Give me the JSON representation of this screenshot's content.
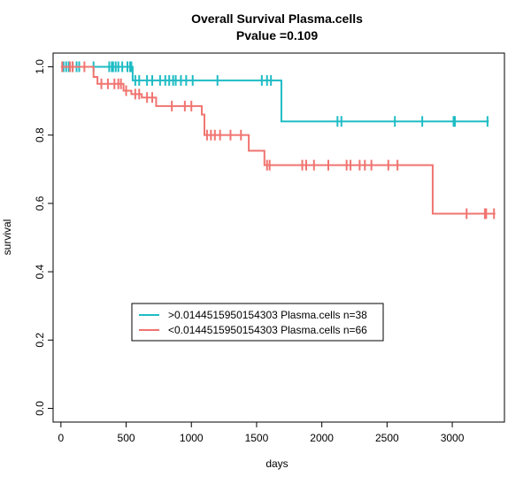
{
  "chart_data": {
    "type": "line",
    "title": "Overall Survival Plasma.cells",
    "subtitle": "Pvalue =0.109",
    "xlabel": "days",
    "ylabel": "survival",
    "xlim": [
      -60,
      3400
    ],
    "ylim": [
      -0.04,
      1.04
    ],
    "x_ticks": [
      0,
      500,
      1000,
      1500,
      2000,
      2500,
      3000
    ],
    "y_ticks": [
      0.0,
      0.2,
      0.4,
      0.6,
      0.8,
      1.0
    ],
    "x_tick_labels": [
      "0",
      "500",
      "1000",
      "1500",
      "2000",
      "2500",
      "3000"
    ],
    "y_tick_labels": [
      "0.0",
      "0.2",
      "0.4",
      "0.6",
      "0.8",
      "1.0"
    ],
    "grid": false,
    "legend_position": "bottom-left",
    "series": [
      {
        "name": ">0.0144515950154303 Plasma.cells n=38",
        "color": "#1fbcc4",
        "steps": [
          [
            0,
            1.0
          ],
          [
            550,
            0.96
          ],
          [
            1690,
            0.84
          ],
          [
            3280,
            0.84
          ]
        ],
        "censored": [
          [
            20,
            1.0
          ],
          [
            40,
            1.0
          ],
          [
            60,
            1.0
          ],
          [
            90,
            1.0
          ],
          [
            120,
            1.0
          ],
          [
            140,
            1.0
          ],
          [
            250,
            1.0
          ],
          [
            370,
            1.0
          ],
          [
            390,
            1.0
          ],
          [
            400,
            1.0
          ],
          [
            420,
            1.0
          ],
          [
            440,
            1.0
          ],
          [
            470,
            1.0
          ],
          [
            510,
            1.0
          ],
          [
            530,
            1.0
          ],
          [
            540,
            1.0
          ],
          [
            570,
            0.96
          ],
          [
            600,
            0.96
          ],
          [
            660,
            0.96
          ],
          [
            700,
            0.96
          ],
          [
            760,
            0.96
          ],
          [
            800,
            0.96
          ],
          [
            830,
            0.96
          ],
          [
            860,
            0.96
          ],
          [
            880,
            0.96
          ],
          [
            920,
            0.96
          ],
          [
            960,
            0.96
          ],
          [
            1010,
            0.96
          ],
          [
            1200,
            0.96
          ],
          [
            1540,
            0.96
          ],
          [
            1580,
            0.96
          ],
          [
            1610,
            0.96
          ],
          [
            2120,
            0.84
          ],
          [
            2150,
            0.84
          ],
          [
            2560,
            0.84
          ],
          [
            2770,
            0.84
          ],
          [
            3010,
            0.84
          ],
          [
            3020,
            0.84
          ],
          [
            3270,
            0.84
          ]
        ]
      },
      {
        "name": "<0.0144515950154303 Plasma.cells n=66",
        "color": "#f07470",
        "steps": [
          [
            0,
            1.0
          ],
          [
            250,
            0.97
          ],
          [
            280,
            0.95
          ],
          [
            480,
            0.93
          ],
          [
            540,
            0.92
          ],
          [
            620,
            0.91
          ],
          [
            730,
            0.885
          ],
          [
            1080,
            0.86
          ],
          [
            1100,
            0.8
          ],
          [
            1440,
            0.754
          ],
          [
            1560,
            0.712
          ],
          [
            2850,
            0.57
          ],
          [
            3330,
            0.57
          ]
        ],
        "censored": [
          [
            10,
            1.0
          ],
          [
            70,
            1.0
          ],
          [
            90,
            1.0
          ],
          [
            180,
            1.0
          ],
          [
            310,
            0.95
          ],
          [
            360,
            0.95
          ],
          [
            410,
            0.95
          ],
          [
            440,
            0.95
          ],
          [
            460,
            0.95
          ],
          [
            500,
            0.93
          ],
          [
            570,
            0.92
          ],
          [
            600,
            0.92
          ],
          [
            660,
            0.91
          ],
          [
            700,
            0.91
          ],
          [
            850,
            0.885
          ],
          [
            950,
            0.885
          ],
          [
            1000,
            0.885
          ],
          [
            1120,
            0.8
          ],
          [
            1150,
            0.8
          ],
          [
            1180,
            0.8
          ],
          [
            1220,
            0.8
          ],
          [
            1300,
            0.8
          ],
          [
            1380,
            0.8
          ],
          [
            1580,
            0.712
          ],
          [
            1600,
            0.712
          ],
          [
            1850,
            0.712
          ],
          [
            1880,
            0.712
          ],
          [
            1940,
            0.712
          ],
          [
            2050,
            0.712
          ],
          [
            2190,
            0.712
          ],
          [
            2220,
            0.712
          ],
          [
            2290,
            0.712
          ],
          [
            2330,
            0.712
          ],
          [
            2380,
            0.712
          ],
          [
            2510,
            0.712
          ],
          [
            2580,
            0.712
          ],
          [
            3110,
            0.57
          ],
          [
            3250,
            0.57
          ],
          [
            3260,
            0.57
          ],
          [
            3320,
            0.57
          ]
        ]
      }
    ]
  }
}
